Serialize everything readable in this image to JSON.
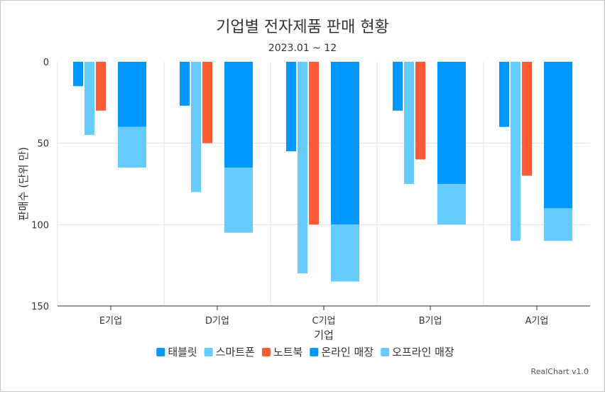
{
  "chart_data": {
    "type": "bar",
    "title": "기업별 전자제품 판매 현황",
    "subtitle": "2023.01 ~ 12",
    "xlabel": "기업",
    "ylabel": "판매수 (단위 만)",
    "y_axis_reversed": true,
    "ylim": [
      0,
      150
    ],
    "yticks": [
      0,
      50,
      100,
      150
    ],
    "categories": [
      "E기업",
      "D기업",
      "C기업",
      "B기업",
      "A기업"
    ],
    "grouped_series": [
      {
        "name": "태블릿",
        "color": "#0098ff",
        "values": [
          15,
          27,
          55,
          30,
          40
        ]
      },
      {
        "name": "스마트폰",
        "color": "#66ccff",
        "values": [
          45,
          80,
          130,
          75,
          110
        ]
      },
      {
        "name": "노트북",
        "color": "#ff5c35",
        "values": [
          30,
          50,
          100,
          60,
          70
        ]
      }
    ],
    "stacked_series": [
      {
        "name": "온라인 매장",
        "color": "#0098ff",
        "values": [
          40,
          65,
          100,
          75,
          90
        ]
      },
      {
        "name": "오프라인 매장",
        "color": "#66ccff",
        "values": [
          25,
          40,
          35,
          25,
          20
        ]
      }
    ],
    "legend_position": "bottom",
    "grid": true,
    "credit": "RealChart v1.0"
  }
}
